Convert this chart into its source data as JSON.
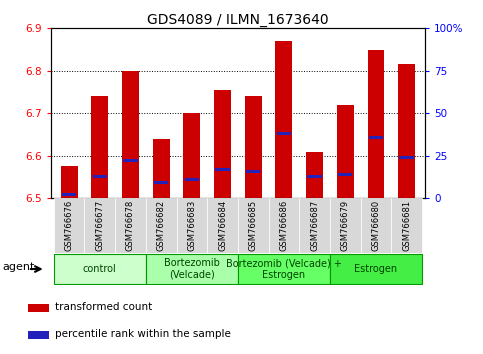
{
  "title": "GDS4089 / ILMN_1673640",
  "samples": [
    "GSM766676",
    "GSM766677",
    "GSM766678",
    "GSM766682",
    "GSM766683",
    "GSM766684",
    "GSM766685",
    "GSM766686",
    "GSM766687",
    "GSM766679",
    "GSM766680",
    "GSM766681"
  ],
  "red_values": [
    6.575,
    6.74,
    6.8,
    6.64,
    6.7,
    6.755,
    6.74,
    6.87,
    6.61,
    6.72,
    6.85,
    6.815
  ],
  "blue_percentiles": [
    0.02,
    0.13,
    0.22,
    0.09,
    0.11,
    0.17,
    0.16,
    0.38,
    0.13,
    0.14,
    0.36,
    0.24
  ],
  "ymin": 6.5,
  "ymax": 6.9,
  "y2min": 0,
  "y2max": 100,
  "yticks": [
    6.5,
    6.6,
    6.7,
    6.8,
    6.9
  ],
  "y2ticks": [
    0,
    25,
    50,
    75,
    100
  ],
  "y2ticklabels": [
    "0",
    "25",
    "50",
    "75",
    "100%"
  ],
  "groups": [
    {
      "label": "control",
      "start": 0,
      "end": 3,
      "color": "#ccffcc"
    },
    {
      "label": "Bortezomib\n(Velcade)",
      "start": 3,
      "end": 6,
      "color": "#aaffaa"
    },
    {
      "label": "Bortezomib (Velcade) +\nEstrogen",
      "start": 6,
      "end": 9,
      "color": "#66ff66"
    },
    {
      "label": "Estrogen",
      "start": 9,
      "end": 12,
      "color": "#44ee44"
    }
  ],
  "bar_width": 0.55,
  "red_color": "#cc0000",
  "blue_color": "#2222bb",
  "legend_red": "transformed count",
  "legend_blue": "percentile rank within the sample",
  "agent_label": "agent",
  "title_fontsize": 10,
  "ytick_fontsize": 7.5,
  "xtick_fontsize": 6,
  "group_fontsize": 7,
  "legend_fontsize": 7.5
}
